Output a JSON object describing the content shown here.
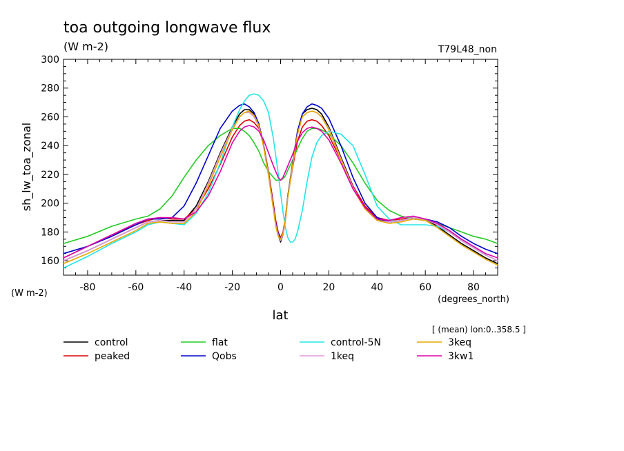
{
  "chart_data": {
    "type": "line",
    "title": "toa outgoing longwave flux",
    "subtitle": "(W m-2)",
    "run_label": "T79L48_non",
    "ylabel": "sh_lw_toa_zonal",
    "y_units_label": "(W m-2)",
    "xlabel": "lat",
    "x_units_label": "(degrees_north)",
    "annotation": "[ (mean) lon:0..358.5 ]",
    "xlim": [
      -90,
      90
    ],
    "ylim": [
      150,
      300
    ],
    "x_ticks": [
      -80,
      -60,
      -40,
      -20,
      0,
      20,
      40,
      60,
      80
    ],
    "y_ticks": [
      160,
      180,
      200,
      220,
      240,
      260,
      280,
      300
    ],
    "grid": false,
    "legend_position": "bottom",
    "series": [
      {
        "name": "control",
        "color": "#000000",
        "x": [
          -90,
          -80,
          -70,
          -60,
          -55,
          -50,
          -45,
          -40,
          -35,
          -30,
          -25,
          -20,
          -17,
          -15,
          -13,
          -11,
          -9,
          -7,
          -5,
          -3,
          -2,
          -1,
          0,
          1,
          2,
          3,
          5,
          7,
          9,
          11,
          13,
          15,
          17,
          20,
          25,
          30,
          35,
          40,
          45,
          50,
          55,
          60,
          65,
          70,
          75,
          80,
          85,
          90
        ],
        "y": [
          160,
          167,
          175,
          183,
          187,
          188,
          188,
          188,
          198,
          215,
          235,
          253,
          262,
          265,
          265,
          262,
          255,
          240,
          220,
          197,
          185,
          178,
          173,
          178,
          188,
          205,
          228,
          250,
          262,
          265,
          266,
          265,
          262,
          253,
          232,
          212,
          197,
          189,
          187,
          188,
          190,
          189,
          184,
          178,
          172,
          167,
          162,
          158
        ]
      },
      {
        "name": "peaked",
        "color": "#dd0000",
        "x": [
          -90,
          -80,
          -70,
          -60,
          -55,
          -50,
          -45,
          -40,
          -35,
          -30,
          -25,
          -20,
          -17,
          -15,
          -13,
          -11,
          -9,
          -7,
          -5,
          -3,
          -2,
          -1,
          0,
          1,
          2,
          3,
          5,
          7,
          9,
          11,
          13,
          15,
          17,
          20,
          25,
          30,
          35,
          40,
          45,
          50,
          55,
          60,
          65,
          70,
          75,
          80,
          85,
          90
        ],
        "y": [
          162,
          170,
          178,
          185,
          188,
          190,
          189,
          189,
          196,
          210,
          227,
          246,
          254,
          257,
          258,
          256,
          252,
          240,
          222,
          200,
          188,
          180,
          176,
          180,
          190,
          205,
          225,
          243,
          253,
          257,
          258,
          257,
          254,
          247,
          230,
          212,
          198,
          190,
          188,
          189,
          190,
          189,
          185,
          180,
          174,
          169,
          164,
          160
        ]
      },
      {
        "name": "flat",
        "color": "#22cc22",
        "x": [
          -90,
          -80,
          -70,
          -60,
          -55,
          -50,
          -45,
          -40,
          -35,
          -30,
          -25,
          -20,
          -17,
          -15,
          -13,
          -11,
          -9,
          -7,
          -5,
          -3,
          -2,
          -1,
          0,
          1,
          2,
          3,
          5,
          7,
          9,
          11,
          13,
          15,
          17,
          20,
          25,
          30,
          35,
          40,
          45,
          50,
          55,
          60,
          65,
          70,
          75,
          80,
          85,
          90
        ],
        "y": [
          172,
          177,
          184,
          189,
          191,
          196,
          205,
          218,
          230,
          240,
          247,
          252,
          252,
          250,
          247,
          242,
          236,
          228,
          222,
          218,
          216,
          216,
          216,
          217,
          219,
          223,
          230,
          238,
          245,
          250,
          252,
          252,
          251,
          248,
          240,
          228,
          214,
          202,
          195,
          191,
          189,
          188,
          186,
          183,
          180,
          177,
          175,
          172
        ]
      },
      {
        "name": "Qobs",
        "color": "#0000cc",
        "x": [
          -90,
          -80,
          -70,
          -60,
          -55,
          -50,
          -45,
          -40,
          -35,
          -30,
          -25,
          -20,
          -17,
          -15,
          -13,
          -11,
          -9,
          -7,
          -5,
          -3,
          -2,
          -1,
          0,
          1,
          2,
          3,
          5,
          7,
          9,
          11,
          13,
          15,
          17,
          20,
          25,
          30,
          35,
          40,
          45,
          50,
          55,
          60,
          65,
          70,
          75,
          80,
          85,
          90
        ],
        "y": [
          165,
          170,
          177,
          185,
          189,
          189,
          190,
          198,
          214,
          233,
          252,
          264,
          268,
          269,
          267,
          263,
          255,
          240,
          220,
          198,
          186,
          179,
          175,
          179,
          189,
          205,
          228,
          250,
          262,
          267,
          269,
          268,
          266,
          259,
          240,
          218,
          200,
          190,
          187,
          188,
          190,
          189,
          187,
          183,
          177,
          172,
          168,
          165
        ]
      },
      {
        "name": "control-5N",
        "color": "#22e6e6",
        "x": [
          -90,
          -80,
          -70,
          -60,
          -55,
          -50,
          -45,
          -40,
          -35,
          -30,
          -25,
          -20,
          -17,
          -15,
          -13,
          -11,
          -9,
          -7,
          -5,
          -3,
          -2,
          -1,
          0,
          1,
          2,
          3,
          4,
          5,
          6,
          7,
          9,
          11,
          13,
          15,
          17,
          20,
          25,
          30,
          35,
          40,
          45,
          50,
          55,
          60,
          65,
          70,
          75,
          80,
          85,
          90
        ],
        "y": [
          155,
          163,
          172,
          180,
          185,
          187,
          186,
          185,
          193,
          207,
          228,
          253,
          265,
          271,
          275,
          276,
          275,
          271,
          263,
          245,
          233,
          221,
          207,
          194,
          183,
          176,
          173,
          173,
          175,
          180,
          195,
          215,
          232,
          242,
          247,
          250,
          248,
          240,
          220,
          198,
          189,
          185,
          185,
          185,
          184,
          180,
          174,
          169,
          164,
          160
        ]
      },
      {
        "name": "1keq",
        "color": "#e099dd",
        "x": [
          -90,
          -80,
          -70,
          -60,
          -55,
          -50,
          -45,
          -40,
          -35,
          -30,
          -25,
          -20,
          -17,
          -15,
          -13,
          -11,
          -9,
          -7,
          -5,
          -3,
          -2,
          -1,
          0,
          1,
          2,
          3,
          5,
          7,
          9,
          11,
          13,
          15,
          17,
          20,
          25,
          30,
          35,
          40,
          45,
          50,
          55,
          60,
          65,
          70,
          75,
          80,
          85,
          90
        ],
        "y": [
          160,
          167,
          175,
          183,
          187,
          188,
          187,
          187,
          196,
          214,
          234,
          252,
          260,
          263,
          263,
          260,
          253,
          239,
          220,
          197,
          185,
          178,
          174,
          178,
          188,
          204,
          226,
          248,
          260,
          263,
          264,
          263,
          260,
          252,
          231,
          211,
          196,
          188,
          187,
          188,
          190,
          189,
          185,
          180,
          174,
          169,
          164,
          160
        ]
      },
      {
        "name": "3keq",
        "color": "#e6aa00",
        "x": [
          -90,
          -80,
          -70,
          -60,
          -55,
          -50,
          -45,
          -40,
          -35,
          -30,
          -25,
          -20,
          -17,
          -15,
          -13,
          -11,
          -9,
          -7,
          -5,
          -3,
          -2,
          -1,
          0,
          1,
          2,
          3,
          5,
          7,
          9,
          11,
          13,
          15,
          17,
          20,
          25,
          30,
          35,
          40,
          45,
          50,
          55,
          60,
          65,
          70,
          75,
          80,
          85,
          90
        ],
        "y": [
          158,
          165,
          173,
          181,
          186,
          187,
          186,
          186,
          194,
          212,
          232,
          251,
          260,
          263,
          264,
          261,
          254,
          239,
          219,
          196,
          184,
          177,
          175,
          179,
          189,
          204,
          227,
          248,
          260,
          263,
          264,
          263,
          260,
          251,
          230,
          210,
          196,
          188,
          186,
          187,
          189,
          188,
          183,
          177,
          171,
          166,
          161,
          157
        ]
      },
      {
        "name": "3kw1",
        "color": "#dd00aa",
        "x": [
          -90,
          -80,
          -70,
          -60,
          -55,
          -50,
          -45,
          -40,
          -35,
          -30,
          -25,
          -20,
          -17,
          -15,
          -13,
          -11,
          -9,
          -7,
          -5,
          -3,
          -2,
          -1,
          0,
          1,
          2,
          3,
          5,
          7,
          9,
          11,
          13,
          15,
          17,
          20,
          25,
          30,
          35,
          40,
          45,
          50,
          55,
          60,
          65,
          70,
          75,
          80,
          85,
          90
        ],
        "y": [
          162,
          170,
          178,
          186,
          189,
          190,
          190,
          189,
          194,
          205,
          222,
          242,
          250,
          253,
          254,
          253,
          250,
          244,
          235,
          226,
          222,
          218,
          216,
          218,
          222,
          226,
          234,
          243,
          249,
          252,
          253,
          252,
          250,
          244,
          228,
          210,
          197,
          189,
          188,
          190,
          191,
          189,
          186,
          181,
          175,
          170,
          165,
          162
        ]
      }
    ]
  }
}
